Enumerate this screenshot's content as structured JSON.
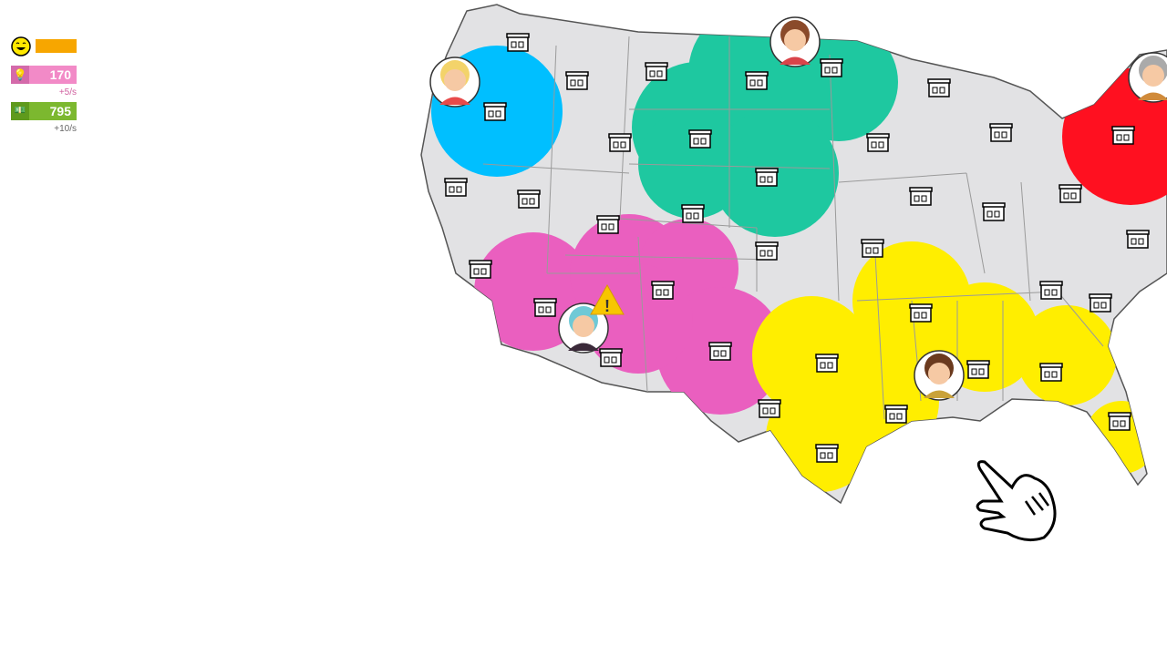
{
  "hud": {
    "happiness": {
      "icon": "smiley-icon",
      "fill_percent": 100,
      "color": "#f7a600"
    },
    "research": {
      "icon": "lightbulb-brain-icon",
      "value": "170",
      "rate": "+5/s",
      "color": "#f28ac7",
      "rate_color": "#d0609f"
    },
    "money": {
      "icon": "cash-icon",
      "value": "795",
      "rate": "+10/s",
      "color": "#7cb82f",
      "rate_color": "#666666"
    }
  },
  "map": {
    "land_color": "#e2e2e4",
    "regions": [
      {
        "name": "northwest",
        "color": "#00bfff"
      },
      {
        "name": "north-central",
        "color": "#1ec8a0"
      },
      {
        "name": "southwest",
        "color": "#ea5fbf"
      },
      {
        "name": "south",
        "color": "#ffee00"
      },
      {
        "name": "northeast",
        "color": "#ff1020"
      }
    ],
    "alert_icon": "warning-icon",
    "cursor_icon": "hand-pointer-icon"
  }
}
